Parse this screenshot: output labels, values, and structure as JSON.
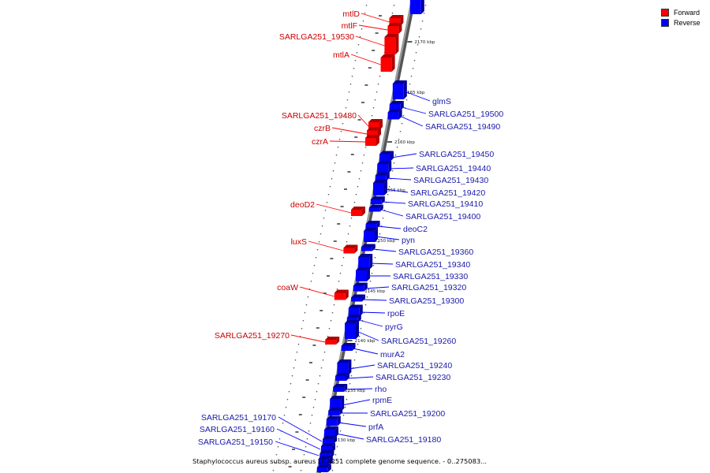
{
  "legend": {
    "forward_label": "Forward",
    "reverse_label": "Reverse",
    "forward_color": "#ff0000",
    "reverse_color": "#0000ff"
  },
  "caption": "Staphylococcus aureus subsp. aureus LGA251 complete genome sequence. - 0..275083...",
  "ticks": [
    {
      "label": "2170 kbp"
    },
    {
      "label": "2165 kbp"
    },
    {
      "label": "2160 kbp"
    },
    {
      "label": "2155 kbp"
    },
    {
      "label": "2150 kbp"
    },
    {
      "label": "2145 kbp"
    },
    {
      "label": "2140 kbp"
    },
    {
      "label": "2135 kbp"
    },
    {
      "label": "2130 kbp"
    }
  ],
  "forward_genes": [
    {
      "name": "mtlD"
    },
    {
      "name": "mtlF"
    },
    {
      "name": "SARLGA251_19530"
    },
    {
      "name": "mtlA"
    },
    {
      "name": "SARLGA251_19480"
    },
    {
      "name": "czrB"
    },
    {
      "name": "czrA"
    },
    {
      "name": "deoD2"
    },
    {
      "name": "luxS"
    },
    {
      "name": "coaW"
    },
    {
      "name": "SARLGA251_19270"
    }
  ],
  "reverse_genes": [
    {
      "name": "glmS"
    },
    {
      "name": "SARLGA251_19500"
    },
    {
      "name": "SARLGA251_19490"
    },
    {
      "name": "SARLGA251_19450"
    },
    {
      "name": "SARLGA251_19440"
    },
    {
      "name": "SARLGA251_19430"
    },
    {
      "name": "SARLGA251_19420"
    },
    {
      "name": "SARLGA251_19410"
    },
    {
      "name": "SARLGA251_19400"
    },
    {
      "name": "deoC2"
    },
    {
      "name": "pyn"
    },
    {
      "name": "SARLGA251_19360"
    },
    {
      "name": "SARLGA251_19340"
    },
    {
      "name": "SARLGA251_19330"
    },
    {
      "name": "SARLGA251_19320"
    },
    {
      "name": "SARLGA251_19300"
    },
    {
      "name": "rpoE"
    },
    {
      "name": "pyrG"
    },
    {
      "name": "SARLGA251_19260"
    },
    {
      "name": "murA2"
    },
    {
      "name": "SARLGA251_19240"
    },
    {
      "name": "SARLGA251_19230"
    },
    {
      "name": "rho"
    },
    {
      "name": "rpmE"
    },
    {
      "name": "SARLGA251_19200"
    },
    {
      "name": "prfA"
    },
    {
      "name": "SARLGA251_19180"
    },
    {
      "name": "SARLGA251_19170"
    },
    {
      "name": "SARLGA251_19160"
    },
    {
      "name": "SARLGA251_19150"
    }
  ]
}
